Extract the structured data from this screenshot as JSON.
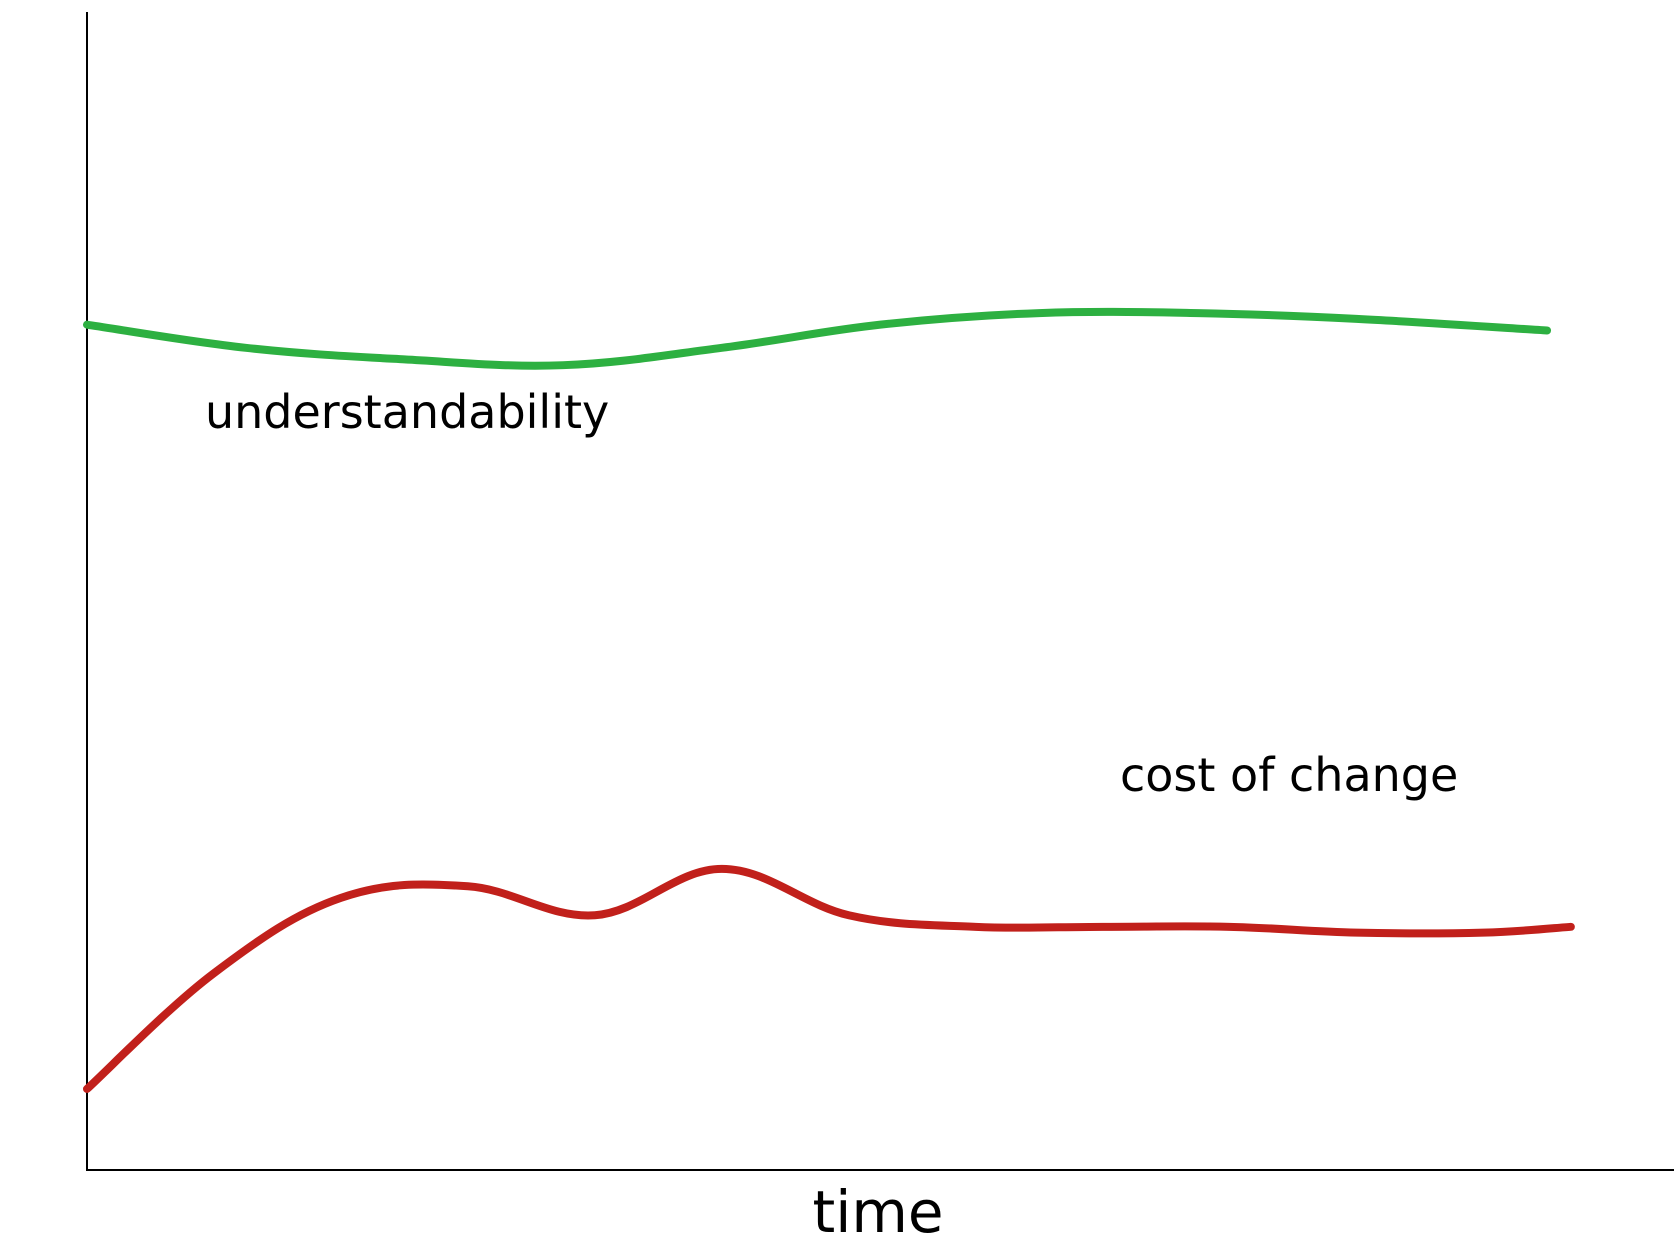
{
  "chart_data": {
    "type": "line",
    "title": "",
    "xlabel": "time",
    "ylabel": "",
    "xlim": [
      0,
      100
    ],
    "ylim": [
      0,
      100
    ],
    "grid": false,
    "legend": "inline labels",
    "series": [
      {
        "name": "understandability",
        "color": "#2db041",
        "x": [
          0,
          10,
          20,
          30,
          40,
          50,
          60,
          70,
          80,
          92
        ],
        "y": [
          73,
          71,
          70,
          69.5,
          71,
          73,
          74,
          74,
          73.5,
          72.5
        ]
      },
      {
        "name": "cost of change",
        "color": "#c1201b",
        "x": [
          0,
          8,
          16,
          24,
          32,
          40,
          48,
          56,
          64,
          72,
          80,
          88,
          93.5
        ],
        "y": [
          7,
          17,
          23.5,
          24.5,
          22,
          26,
          22,
          21,
          21,
          21,
          20.5,
          20.5,
          21
        ]
      }
    ]
  }
}
